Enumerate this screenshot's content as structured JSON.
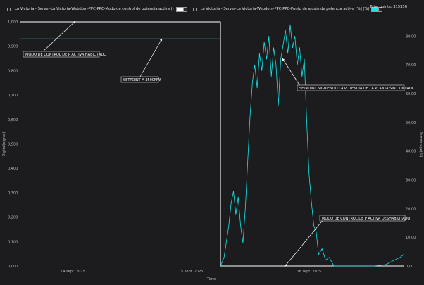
{
  "legend": {
    "item1": "La Victoria - Server-La Victoria-Webdom-PPC-PPC-Modo de control de potencia activa ()",
    "item2": "La Victoria - Server-La Victoria-Webdom-PPC-PPC-Punto de ajuste de potencia activa [%] (%)",
    "total_label": "Total points:",
    "total_value": "315350"
  },
  "chart_data": {
    "type": "line",
    "xlabel": "Time",
    "ylabel_left": "Digital(signal)",
    "ylabel_right": "Percentage(%)",
    "x_ticks": [
      "14 sept. 2025",
      "15 sept. 2025",
      "16 sept. 2025"
    ],
    "y_left_ticks": [
      "0,000",
      "0,100",
      "0,200",
      "0,300",
      "0,400",
      "0,500",
      "0,600",
      "0,700",
      "0,800",
      "0,900",
      "1,000"
    ],
    "y_left_range": [
      0,
      1
    ],
    "y_right_ticks": [
      "0,00",
      "10,00",
      "20,00",
      "30,00",
      "40,00",
      "50,00",
      "60,00",
      "70,00",
      "80,00"
    ],
    "y_right_range": [
      0,
      85
    ],
    "x_range_days": [
      13.6,
      16.85
    ],
    "series": [
      {
        "name": "La Victoria - Server-La Victoria-Webdom-PPC-PPC-Modo de control de potencia activa ()",
        "axis": "left",
        "color": "#ffffff",
        "points": [
          [
            13.6,
            1
          ],
          [
            15.3,
            1
          ],
          [
            15.3,
            0
          ],
          [
            16.85,
            0
          ]
        ]
      },
      {
        "name": "Setpoint",
        "axis": "left",
        "color": "#19b3a8",
        "points": [
          [
            13.6,
            0.93
          ],
          [
            15.3,
            0.93
          ]
        ]
      },
      {
        "name": "La Victoria - Server-La Victoria-Webdom-PPC-PPC-Punto de ajuste de potencia activa [%] (%)",
        "axis": "right",
        "color": "#19e3e3",
        "points": [
          [
            15.3,
            0
          ],
          [
            15.33,
            3
          ],
          [
            15.37,
            14
          ],
          [
            15.39,
            22
          ],
          [
            15.41,
            26
          ],
          [
            15.43,
            18
          ],
          [
            15.45,
            24
          ],
          [
            15.47,
            14
          ],
          [
            15.49,
            8
          ],
          [
            15.51,
            20
          ],
          [
            15.53,
            36
          ],
          [
            15.55,
            52
          ],
          [
            15.57,
            64
          ],
          [
            15.59,
            70
          ],
          [
            15.61,
            62
          ],
          [
            15.63,
            74
          ],
          [
            15.65,
            68
          ],
          [
            15.67,
            78
          ],
          [
            15.69,
            72
          ],
          [
            15.71,
            80
          ],
          [
            15.73,
            66
          ],
          [
            15.75,
            76
          ],
          [
            15.77,
            70
          ],
          [
            15.79,
            56
          ],
          [
            15.81,
            72
          ],
          [
            15.83,
            77
          ],
          [
            15.85,
            82
          ],
          [
            15.87,
            74
          ],
          [
            15.89,
            84
          ],
          [
            15.91,
            76
          ],
          [
            15.93,
            80
          ],
          [
            15.95,
            70
          ],
          [
            15.97,
            76
          ],
          [
            15.99,
            66
          ],
          [
            16.01,
            72
          ],
          [
            16.03,
            50
          ],
          [
            16.05,
            32
          ],
          [
            16.07,
            22
          ],
          [
            16.09,
            14
          ],
          [
            16.11,
            12
          ],
          [
            16.13,
            4
          ],
          [
            16.16,
            6
          ],
          [
            16.19,
            2
          ],
          [
            16.22,
            3
          ],
          [
            16.26,
            0
          ],
          [
            16.6,
            0
          ],
          [
            16.7,
            0.5
          ],
          [
            16.77,
            2
          ],
          [
            16.82,
            3
          ],
          [
            16.85,
            4
          ]
        ]
      }
    ],
    "annotations": [
      {
        "text": "MODO DE CONTROL DE P ACTIVA HABILITADO"
      },
      {
        "text": "SETPOINT A 3500MW"
      },
      {
        "text": "SETPOINT SIGUIENDO LA POTENCIA DE LA PLANTA SIN CONTROL"
      },
      {
        "text": "MODO DE CONTROL DE P ACTIVA DESHABILITADO"
      }
    ]
  }
}
